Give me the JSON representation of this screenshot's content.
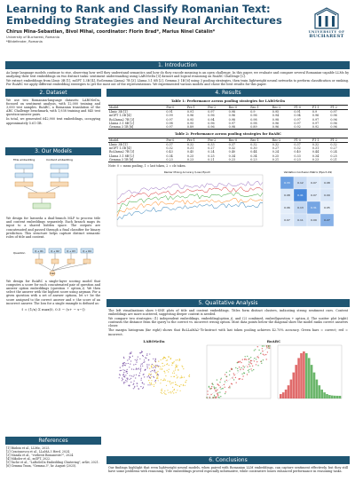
{
  "header": {
    "title": "Learning to Rank and Classify Romanian Text: Embedding Strategies and Neural Architectures",
    "authors": "Chirus Mina-Sebastian, Bivol Mihai, coordinator: Florin Brad*, Marius Ninel Cătălin*",
    "affiliation1": "University of Bucharest, Romania",
    "affiliation2": "*Bitdefender, Romania",
    "logo_line1": "UNIVERSITY OF",
    "logo_line2": "BUCHAREST"
  },
  "intro": {
    "heading": "1. Introduction",
    "text": "As large language models continue to rise, observing how well they understand semantics and how do they encode meaning is an open challenge. In this paper, we evaluate and compare several Romanian-capable LLMs by analyzing their text embeddings on two distinct tasks: sentiment understanding using LAROSeDa [5] dataset and logical reasoning on RoARC Challenge [2].",
    "text2": "We extract embeddings from Llmic 3B [1], mGPT 1.3B [4], RoGemma Llama2 7B [3], Llama 3.1 8B [2], Gemma 3 1B [6] using 3 pooling strategies, then train lightweight neural networks to perform classification or ranking. For RoARC we apply different embedding strategies to get the most out of the representations. We experimented various models and chose the best results for this paper."
  },
  "dataset": {
    "heading": "2. Dataset",
    "text": "We use two Romanian-language datasets: LAROSeDa, focused on sentiment analysis, with 12,000 training and 3,000 test samples. RoARC, a Romanian translation of the ARC Challenge benchmark, with 1,938 training and 845 test question-answer pairs.",
    "text2": "In total, we generated 642,900 text embeddings, occupying approximately 5.61 GB."
  },
  "models": {
    "heading": "3. Our Models",
    "diag1_left": "Title embedding",
    "diag1_right": "Content embedding",
    "text1": "We design for larosedа a dual-branch MLP to process title and content embeddings separately. Each branch maps its input to a shared hidden space. The outputs are concatenated and passed through a final classifier for binary prediction. This structure helps capture distinct semantic roles of title and content.",
    "diag2_question": "Question",
    "diag2_answers": [
      "Q + O1",
      "Q + O2",
      "Q + O3",
      "Q + O4"
    ],
    "text2": "We design for RoARC a single-layer scoring model that computes a score for each concatenated pair of question and answer option embeddings (question + option_i). We then select the answer with the highest score using argmax. For a given question with a set of answer options, let s+ be the score assigned to the correct answer and s- the score of an incorrect answer. The loss for a single example is defined as:",
    "formula": "ℓ = (1/n) Σ max(0, 0.5 − (s+ − s−))"
  },
  "references": {
    "heading": "References",
    "items": [
      "[1] Bădoiu et al., LLMic, 2025.",
      "[2] Craciunescu et al., LLaMA 3 Herd, 2024.",
      "[3] Masala et al., \"vorbesti Romaneste?\", 2024.",
      "[4] Mikolov et al., mGPT, 2022.",
      "[5] Tache et al., \"LaRoSeDa Embedding Clustering\", arXiv, 2021.",
      "[6] Gemma Team, \"Gemma 3\", hr. August (2025)."
    ]
  },
  "results": {
    "heading": "4. Results",
    "table1_caption": "Table 1: Performance across pooling strategies for LAROSeDa",
    "table2_caption": "Table 2: Performance across pooling strategies for RoARC",
    "columns": [
      "Model",
      "Pre-0",
      "Pre-1",
      "Pre-2",
      "Rec-0",
      "Rec-1",
      "Rec-2",
      "F1-0",
      "F1-1",
      "F1-2"
    ],
    "table1": [
      [
        "Llmic 3B [1]",
        "0.91",
        "0.91",
        "0.97",
        "0.98",
        "0.9",
        "0.95",
        "0.91",
        "0.9",
        "0.97"
      ],
      [
        "mGPT 1.3B [4]",
        "0.99",
        "0.96",
        "0.96",
        "0.96",
        "0.96",
        "0.94",
        "0.94",
        "0.96",
        "0.96"
      ],
      [
        "RoLlama2 7B [3]",
        "0.97",
        "0.95",
        "0.94",
        "0.98",
        "0.98",
        "0.98",
        "0.97",
        "0.97",
        "0.96"
      ],
      [
        "Llama 3.1 8B [2]",
        "0.98",
        "0.95",
        "0.96",
        "0.97",
        "0.98",
        "0.96",
        "0.97",
        "0.97",
        "0.96"
      ],
      [
        "Gemma 3 1B [6]",
        "0.97",
        "0.89",
        "0.96",
        "0.98",
        "0.89",
        "0.96",
        "0.92",
        "0.92",
        "0.96"
      ]
    ],
    "table2": [
      [
        "Llmic 3B [1]",
        "0.37",
        "0.32",
        "0.33",
        "0.37",
        "0.32",
        "0.32",
        "0.37",
        "0.32",
        "0.32"
      ],
      [
        "mGPT 1.3B [4]",
        "0.32",
        "0.31",
        "0.27",
        "0.32",
        "0.30",
        "0.27",
        "0.32",
        "0.31",
        "0.27"
      ],
      [
        "RoLlama2 7B [3]",
        "0.43",
        "0.45",
        "0.24",
        "0.40",
        "0.44",
        "0.24",
        "0.40",
        "0.44",
        "0.24"
      ],
      [
        "Llama 3.1 8B [2]",
        "0.34",
        "0.25",
        "0.25",
        "0.34",
        "0.34",
        "0.25",
        "0.33",
        "0.34",
        "0.25"
      ],
      [
        "Gemma 3 1B [6]",
        "0.23",
        "0.23",
        "0.21",
        "0.23",
        "0.23",
        "0.21",
        "0.23",
        "0.23",
        "0.21"
      ]
    ],
    "note": "Note: 0 = mean pooling, 1 = last token, 2 = cls token.",
    "loss_chart_title": "Ranker Mining Accuracy (Loss) Epoch",
    "cm_title": "Validation Confusion Matrix (Epoch 49)",
    "loss_series": [
      "RoLlama2 7B mean",
      "RoLlama2 7B last",
      "Llama 3.1 8B mean",
      "Llmic last",
      "mGPT last"
    ],
    "cm_values": [
      [
        0.33,
        0.12,
        0.07,
        0.08
      ],
      [
        0.08,
        0.41,
        0.07,
        0.09
      ],
      [
        0.06,
        0.13,
        0.31,
        0.05
      ],
      [
        0.07,
        0.11,
        0.09,
        0.27
      ]
    ]
  },
  "qualitative": {
    "heading": "5. Qualitative Analysis",
    "text1": "The left visualizations show t-SNE plots of title and content embeddings. Titles form distinct clusters, indicating strong sentiment cues. Content embeddings are more scattered, suggesting deeper context is needed.",
    "text2": "We compare two strategies: (1) independent embeddings, embedding(option_i), and (2) combined, embed(question + option_i). The scatter plot (right) contrasts the distance from the query to the correct vs. incorrect wrong option. Most data points below the diagonal show the model ranks correct answers closer.",
    "text3": "The margin histogram (far right) shows that RoLLaMA2-7b-Instruct with last token pooling achieves 42.70% accuracy. Green bars = correct; red = incorrect.",
    "plot1_title": "LAROSeDa",
    "plot2_title": "RoARC"
  },
  "conclusions": {
    "heading": "6. Conclusions",
    "text": "Our findings highlight that even lightweight neural models, when paired with Romanian LLM embeddings, can capture sentiment effectively, but they still have some problems with reasoning. Title embeddings proved especially informative, while contrastive losses enhanced performance in reasoning tasks."
  },
  "colors": {
    "brand": "#1f5673",
    "correct": "#3a9d3a",
    "incorrect": "#d63a3a"
  }
}
